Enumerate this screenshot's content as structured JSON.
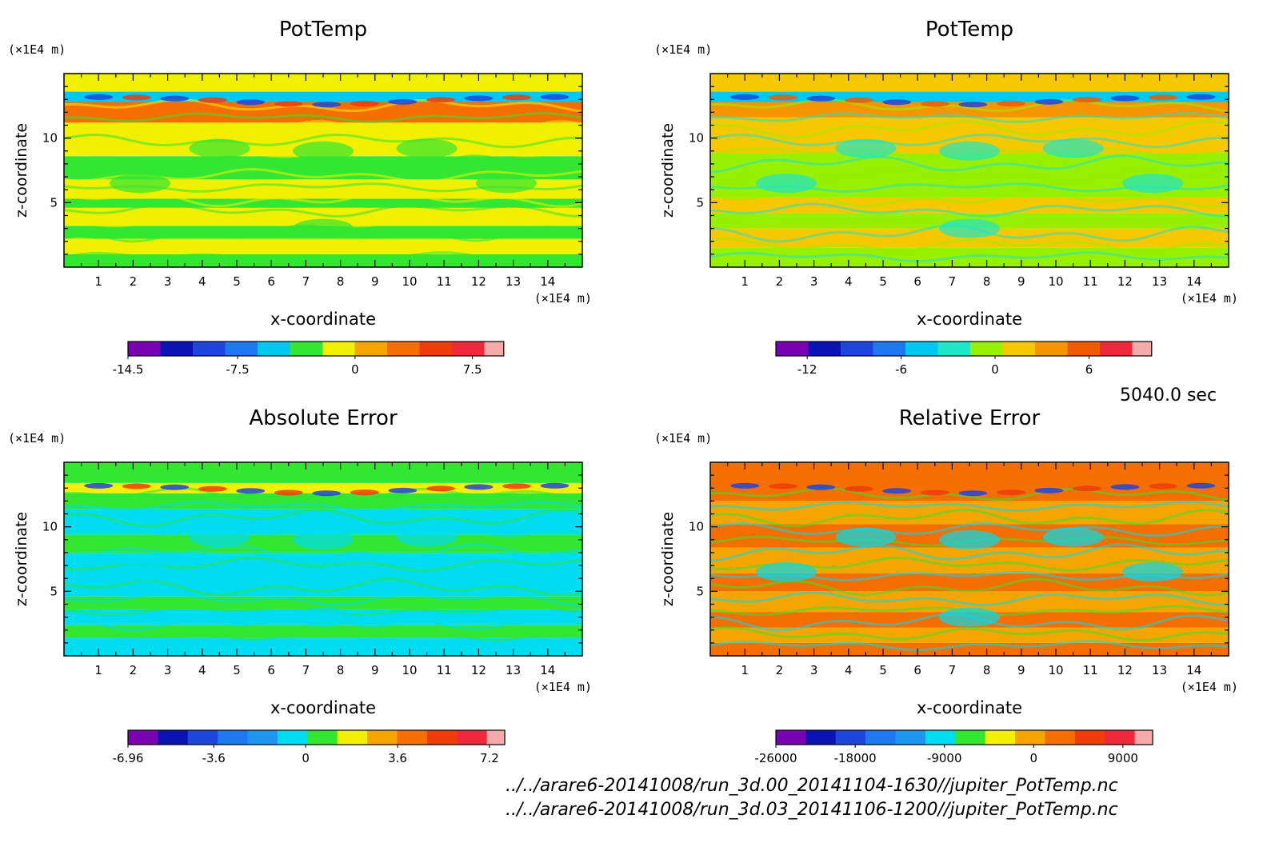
{
  "time_label": "5040.0 sec",
  "footer": {
    "file1": "../../arare6-20141008/run_3d.00_20141104-1630//jupiter_PotTemp.nc",
    "file2": "../../arare6-20141008/run_3d.03_20141106-1200//jupiter_PotTemp.nc"
  },
  "chart_data": [
    {
      "type": "heatmap",
      "title": "PotTemp",
      "xlabel": "x-coordinate",
      "ylabel": "z-coordinate",
      "x_unit": "(×1E4 m)",
      "y_unit": "(×1E4 m)",
      "xlim": [
        0,
        15
      ],
      "ylim": [
        0,
        15
      ],
      "x_ticks": [
        "1",
        "2",
        "3",
        "4",
        "5",
        "6",
        "7",
        "8",
        "9",
        "10",
        "11",
        "12",
        "13",
        "14"
      ],
      "y_ticks": [
        "5",
        "10"
      ],
      "colorbar": {
        "levels": 13,
        "colors": [
          "#7a00b4",
          "#0a14b4",
          "#1e46dc",
          "#1e78f0",
          "#00c8f0",
          "#32e632",
          "#f0f000",
          "#f5a500",
          "#f56e00",
          "#f03c0a",
          "#f0283c",
          "#f5aaaa"
        ],
        "tick_labels": [
          "-14.5",
          "-7.5",
          "0",
          "7.5"
        ],
        "tick_values": [
          -14.5,
          -7.5,
          0,
          7.5
        ],
        "range": [
          -14.5,
          9.5
        ]
      },
      "bands": [
        {
          "z": [
            0,
            1.0
          ],
          "color": "#32e632"
        },
        {
          "z": [
            1.0,
            2.2
          ],
          "color": "#f0f000"
        },
        {
          "z": [
            2.2,
            3.2
          ],
          "color": "#32e632"
        },
        {
          "z": [
            3.2,
            4.6
          ],
          "color": "#f0f000"
        },
        {
          "z": [
            4.6,
            5.3
          ],
          "color": "#32e632"
        },
        {
          "z": [
            5.3,
            6.8
          ],
          "color": "#f0f000"
        },
        {
          "z": [
            6.8,
            8.6
          ],
          "color": "#32e632"
        },
        {
          "z": [
            8.6,
            11.2
          ],
          "color": "#f0f000"
        },
        {
          "z": [
            11.2,
            12.8
          ],
          "color": "#f56e00"
        },
        {
          "z": [
            12.8,
            13.6
          ],
          "color": "#00c8f0"
        },
        {
          "z": [
            13.6,
            15.0
          ],
          "color": "#f0f000"
        }
      ]
    },
    {
      "type": "heatmap",
      "title": "PotTemp",
      "xlabel": "x-coordinate",
      "ylabel": "z-coordinate",
      "x_unit": "(×1E4 m)",
      "y_unit": "(×1E4 m)",
      "xlim": [
        0,
        15
      ],
      "ylim": [
        0,
        15
      ],
      "x_ticks": [
        "1",
        "2",
        "3",
        "4",
        "5",
        "6",
        "7",
        "8",
        "9",
        "10",
        "11",
        "12",
        "13",
        "14"
      ],
      "y_ticks": [
        "5",
        "10"
      ],
      "colorbar": {
        "levels": 13,
        "colors": [
          "#7a00b4",
          "#0a14b4",
          "#1e46dc",
          "#1e78f0",
          "#00c8f0",
          "#1ee6c8",
          "#96f000",
          "#f5c800",
          "#f59600",
          "#f05a00",
          "#f0283c",
          "#f5aaaa"
        ],
        "tick_labels": [
          "-12",
          "-6",
          "0",
          "6"
        ],
        "tick_values": [
          -12,
          -6,
          0,
          6
        ],
        "range": [
          -14,
          10
        ]
      },
      "bands": [
        {
          "z": [
            0,
            1.5
          ],
          "color": "#96f000"
        },
        {
          "z": [
            1.5,
            3.0
          ],
          "color": "#f5c800"
        },
        {
          "z": [
            3.0,
            4.2
          ],
          "color": "#96f000"
        },
        {
          "z": [
            4.2,
            5.4
          ],
          "color": "#f5c800"
        },
        {
          "z": [
            5.4,
            8.8
          ],
          "color": "#96f000"
        },
        {
          "z": [
            8.8,
            11.6
          ],
          "color": "#f5c800"
        },
        {
          "z": [
            11.6,
            12.8
          ],
          "color": "#f59600"
        },
        {
          "z": [
            12.8,
            13.6
          ],
          "color": "#00c8f0"
        },
        {
          "z": [
            13.6,
            15.0
          ],
          "color": "#f5c800"
        }
      ]
    },
    {
      "type": "heatmap",
      "title": "Absolute Error",
      "xlabel": "x-coordinate",
      "ylabel": "z-coordinate",
      "x_unit": "(×1E4 m)",
      "y_unit": "(×1E4 m)",
      "xlim": [
        0,
        15
      ],
      "ylim": [
        0,
        15
      ],
      "x_ticks": [
        "1",
        "2",
        "3",
        "4",
        "5",
        "6",
        "7",
        "8",
        "9",
        "10",
        "11",
        "12",
        "13",
        "14"
      ],
      "y_ticks": [
        "5",
        "10"
      ],
      "colorbar": {
        "levels": 13,
        "colors": [
          "#7a00b4",
          "#0a14b4",
          "#1e46dc",
          "#1e78f0",
          "#1e96f0",
          "#00dcf0",
          "#32e632",
          "#f0f000",
          "#f5a500",
          "#f56e00",
          "#f03c0a",
          "#f0283c",
          "#f5aaaa"
        ],
        "tick_labels": [
          "-6.96",
          "-3.6",
          "0",
          "3.6",
          "7.2"
        ],
        "tick_values": [
          -6.96,
          -3.6,
          0,
          3.6,
          7.2
        ],
        "range": [
          -6.96,
          7.8
        ]
      },
      "bands": [
        {
          "z": [
            0,
            1.4
          ],
          "color": "#00dcf0"
        },
        {
          "z": [
            1.4,
            2.4
          ],
          "color": "#32e632"
        },
        {
          "z": [
            2.4,
            3.6
          ],
          "color": "#00dcf0"
        },
        {
          "z": [
            3.6,
            4.6
          ],
          "color": "#32e632"
        },
        {
          "z": [
            4.6,
            8.0
          ],
          "color": "#00dcf0"
        },
        {
          "z": [
            8.0,
            9.4
          ],
          "color": "#32e632"
        },
        {
          "z": [
            9.4,
            11.4
          ],
          "color": "#00dcf0"
        },
        {
          "z": [
            11.4,
            12.6
          ],
          "color": "#32e632"
        },
        {
          "z": [
            12.6,
            13.4
          ],
          "color": "#f0f000"
        },
        {
          "z": [
            13.4,
            15.0
          ],
          "color": "#32e632"
        }
      ]
    },
    {
      "type": "heatmap",
      "title": "Relative Error",
      "xlabel": "x-coordinate",
      "ylabel": "z-coordinate",
      "x_unit": "(×1E4 m)",
      "y_unit": "(×1E4 m)",
      "xlim": [
        0,
        15
      ],
      "ylim": [
        0,
        15
      ],
      "x_ticks": [
        "1",
        "2",
        "3",
        "4",
        "5",
        "6",
        "7",
        "8",
        "9",
        "10",
        "11",
        "12",
        "13",
        "14"
      ],
      "y_ticks": [
        "5",
        "10"
      ],
      "colorbar": {
        "levels": 13,
        "colors": [
          "#7a00b4",
          "#0a14b4",
          "#1e46dc",
          "#1e78f0",
          "#1e96f0",
          "#00dcf0",
          "#32e632",
          "#f0f000",
          "#f5a500",
          "#f56e00",
          "#f03c0a",
          "#f0283c",
          "#f5aaaa"
        ],
        "tick_labels": [
          "-26000",
          "-18000",
          "-9000",
          "0",
          "9000"
        ],
        "tick_values": [
          -26000,
          -18000,
          -9000,
          0,
          9000
        ],
        "range": [
          -26000,
          12000
        ]
      },
      "bands": [
        {
          "z": [
            0,
            1.0
          ],
          "color": "#f56e00"
        },
        {
          "z": [
            1.0,
            2.2
          ],
          "color": "#f5a500"
        },
        {
          "z": [
            2.2,
            3.4
          ],
          "color": "#f56e00"
        },
        {
          "z": [
            3.4,
            5.0
          ],
          "color": "#f5a500"
        },
        {
          "z": [
            5.0,
            6.4
          ],
          "color": "#f56e00"
        },
        {
          "z": [
            6.4,
            8.4
          ],
          "color": "#f5a500"
        },
        {
          "z": [
            8.4,
            10.2
          ],
          "color": "#f56e00"
        },
        {
          "z": [
            10.2,
            12.0
          ],
          "color": "#f5a500"
        },
        {
          "z": [
            12.0,
            15.0
          ],
          "color": "#f56e00"
        }
      ]
    }
  ]
}
